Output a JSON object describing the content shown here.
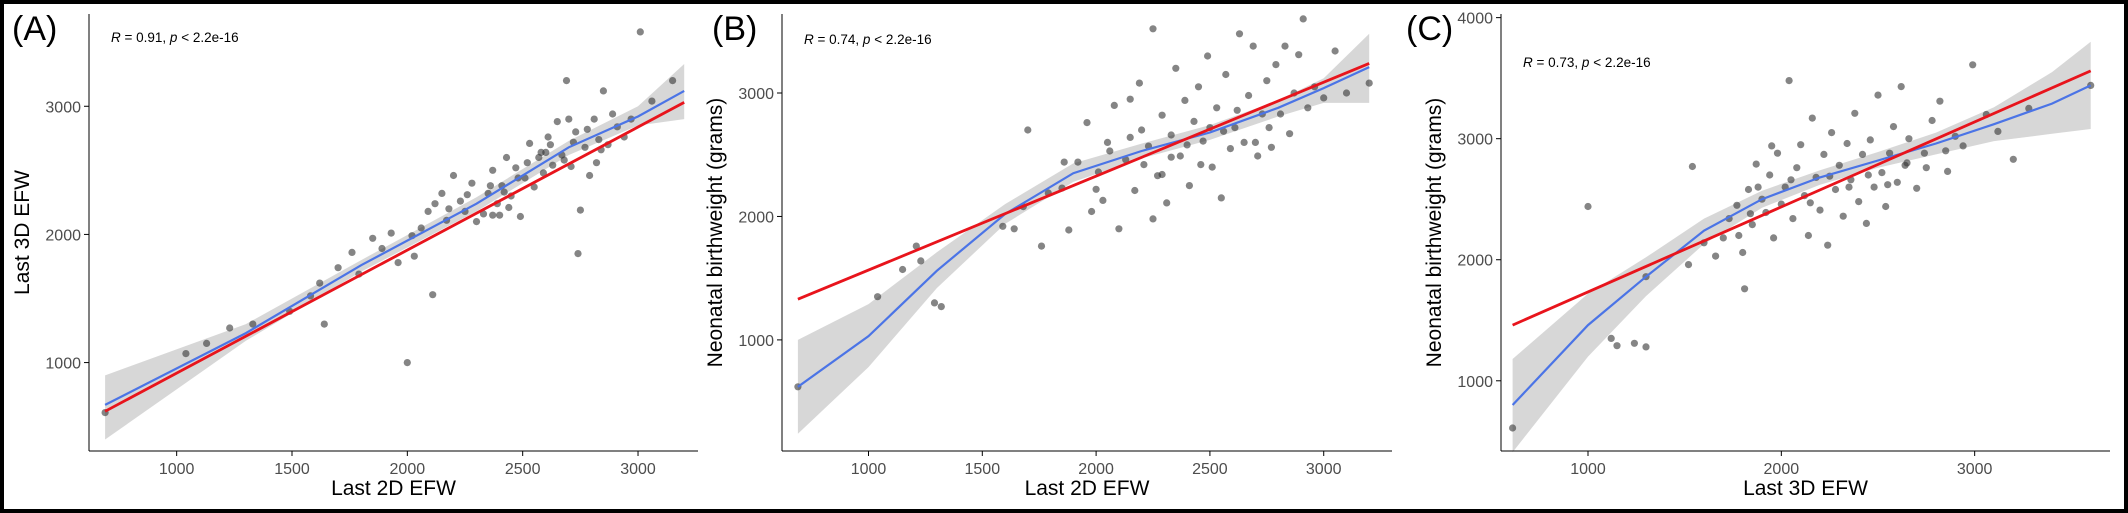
{
  "colors": {
    "linear": "#e8141c",
    "loess": "#4b74e6",
    "band": "#c9c9c9",
    "point": "#333333"
  },
  "chart_data": [
    {
      "type": "scatter",
      "panel_label": "(A)",
      "annotation": {
        "r": "R",
        "r_text": " = 0.91, ",
        "p": "p",
        "p_text": " < 2.2e-16"
      },
      "xlabel": "Last 2D EFW",
      "ylabel": "Last 3D EFW",
      "xlim": [
        620,
        3260
      ],
      "ylim": [
        310,
        3720
      ],
      "xticks": [
        1000,
        1500,
        2000,
        2500,
        3000
      ],
      "yticks": [
        1000,
        2000,
        3000
      ],
      "grid": false,
      "points": [
        [
          690,
          610
        ],
        [
          1040,
          1070
        ],
        [
          1130,
          1150
        ],
        [
          1230,
          1270
        ],
        [
          1330,
          1300
        ],
        [
          1490,
          1400
        ],
        [
          1580,
          1520
        ],
        [
          1640,
          1300
        ],
        [
          1620,
          1620
        ],
        [
          1700,
          1740
        ],
        [
          1760,
          1860
        ],
        [
          1790,
          1690
        ],
        [
          1850,
          1970
        ],
        [
          1890,
          1890
        ],
        [
          1930,
          2010
        ],
        [
          1960,
          1780
        ],
        [
          2020,
          1990
        ],
        [
          2030,
          1830
        ],
        [
          2060,
          2050
        ],
        [
          2090,
          2180
        ],
        [
          2110,
          1530
        ],
        [
          2120,
          2240
        ],
        [
          2150,
          2320
        ],
        [
          2170,
          2110
        ],
        [
          2200,
          2460
        ],
        [
          2230,
          2260
        ],
        [
          2250,
          2180
        ],
        [
          2280,
          2400
        ],
        [
          2300,
          2100
        ],
        [
          2330,
          2160
        ],
        [
          2350,
          2320
        ],
        [
          2370,
          2500
        ],
        [
          2390,
          2240
        ],
        [
          2410,
          2380
        ],
        [
          2430,
          2600
        ],
        [
          2450,
          2300
        ],
        [
          2470,
          2520
        ],
        [
          2490,
          2140
        ],
        [
          2510,
          2440
        ],
        [
          2530,
          2710
        ],
        [
          2550,
          2370
        ],
        [
          2570,
          2600
        ],
        [
          2590,
          2480
        ],
        [
          2610,
          2760
        ],
        [
          2630,
          2540
        ],
        [
          2650,
          2880
        ],
        [
          2670,
          2620
        ],
        [
          2690,
          3200
        ],
        [
          2710,
          2530
        ],
        [
          2730,
          2800
        ],
        [
          2750,
          2190
        ],
        [
          2770,
          2680
        ],
        [
          2790,
          2460
        ],
        [
          2810,
          2900
        ],
        [
          2830,
          2740
        ],
        [
          2850,
          3120
        ],
        [
          2870,
          2700
        ],
        [
          2890,
          2940
        ],
        [
          2910,
          2840
        ],
        [
          2940,
          2760
        ],
        [
          2970,
          2900
        ],
        [
          3010,
          3580
        ],
        [
          3060,
          3040
        ],
        [
          3150,
          3200
        ],
        [
          2000,
          1000
        ],
        [
          2370,
          2150
        ],
        [
          2420,
          2330
        ],
        [
          2480,
          2440
        ],
        [
          2520,
          2560
        ],
        [
          2580,
          2640
        ],
        [
          2620,
          2700
        ],
        [
          2680,
          2580
        ],
        [
          2720,
          2720
        ],
        [
          2780,
          2820
        ],
        [
          2820,
          2560
        ],
        [
          2440,
          2210
        ],
        [
          2360,
          2380
        ],
        [
          2260,
          2310
        ],
        [
          2180,
          2200
        ],
        [
          2600,
          2640
        ],
        [
          2700,
          2900
        ],
        [
          2740,
          1850
        ],
        [
          2840,
          2660
        ],
        [
          2400,
          2150
        ]
      ],
      "linear": [
        [
          690,
          620
        ],
        [
          3200,
          3030
        ]
      ],
      "loess": [
        [
          690,
          670
        ],
        [
          1300,
          1230
        ],
        [
          1800,
          1760
        ],
        [
          2300,
          2240
        ],
        [
          2700,
          2680
        ],
        [
          3000,
          2920
        ],
        [
          3200,
          3120
        ]
      ],
      "band_upper": [
        [
          690,
          900
        ],
        [
          1300,
          1300
        ],
        [
          1800,
          1800
        ],
        [
          2300,
          2290
        ],
        [
          2700,
          2730
        ],
        [
          3000,
          3000
        ],
        [
          3200,
          3330
        ]
      ],
      "band_lower": [
        [
          690,
          400
        ],
        [
          1300,
          1170
        ],
        [
          1800,
          1710
        ],
        [
          2300,
          2180
        ],
        [
          2700,
          2620
        ],
        [
          3000,
          2850
        ],
        [
          3200,
          2900
        ]
      ]
    },
    {
      "type": "scatter",
      "panel_label": "(B)",
      "annotation": {
        "r": "R",
        "r_text": " = 0.74, ",
        "p": "p",
        "p_text": " < 2.2e-16"
      },
      "xlabel": "Last 2D EFW",
      "ylabel": "Neonatal birthweight (grams)",
      "xlim": [
        620,
        3300
      ],
      "ylim": [
        100,
        3640
      ],
      "xticks": [
        1000,
        1500,
        2000,
        2500,
        3000
      ],
      "yticks": [
        1000,
        2000,
        3000
      ],
      "grid": false,
      "points": [
        [
          690,
          620
        ],
        [
          1040,
          1350
        ],
        [
          1150,
          1570
        ],
        [
          1210,
          1760
        ],
        [
          1230,
          1640
        ],
        [
          1290,
          1300
        ],
        [
          1320,
          1270
        ],
        [
          1590,
          1920
        ],
        [
          1640,
          1900
        ],
        [
          1680,
          2080
        ],
        [
          1700,
          2700
        ],
        [
          1760,
          1760
        ],
        [
          1790,
          2190
        ],
        [
          1850,
          2230
        ],
        [
          1880,
          1890
        ],
        [
          1920,
          2440
        ],
        [
          1960,
          2760
        ],
        [
          1980,
          2040
        ],
        [
          2010,
          2360
        ],
        [
          2030,
          2130
        ],
        [
          2060,
          2530
        ],
        [
          2080,
          2900
        ],
        [
          2100,
          1900
        ],
        [
          2130,
          2460
        ],
        [
          2150,
          2640
        ],
        [
          2170,
          2210
        ],
        [
          2190,
          3080
        ],
        [
          2210,
          2420
        ],
        [
          2230,
          2570
        ],
        [
          2250,
          3520
        ],
        [
          2270,
          2330
        ],
        [
          2290,
          2820
        ],
        [
          2310,
          2110
        ],
        [
          2330,
          2660
        ],
        [
          2350,
          3200
        ],
        [
          2370,
          2490
        ],
        [
          2390,
          2940
        ],
        [
          2410,
          2250
        ],
        [
          2430,
          2770
        ],
        [
          2450,
          3050
        ],
        [
          2470,
          2610
        ],
        [
          2490,
          3300
        ],
        [
          2510,
          2400
        ],
        [
          2530,
          2880
        ],
        [
          2550,
          2150
        ],
        [
          2570,
          3150
        ],
        [
          2590,
          2550
        ],
        [
          2610,
          2720
        ],
        [
          2630,
          3480
        ],
        [
          2650,
          2600
        ],
        [
          2670,
          2980
        ],
        [
          2690,
          3380
        ],
        [
          2710,
          2490
        ],
        [
          2730,
          2830
        ],
        [
          2750,
          3100
        ],
        [
          2770,
          2560
        ],
        [
          2790,
          3230
        ],
        [
          2810,
          2830
        ],
        [
          2830,
          3380
        ],
        [
          2850,
          2670
        ],
        [
          2870,
          3000
        ],
        [
          2890,
          3310
        ],
        [
          2910,
          3600
        ],
        [
          2930,
          2880
        ],
        [
          2960,
          3050
        ],
        [
          3000,
          2960
        ],
        [
          3050,
          3340
        ],
        [
          3100,
          3000
        ],
        [
          3200,
          3080
        ],
        [
          2290,
          2340
        ],
        [
          2460,
          2420
        ],
        [
          2560,
          2690
        ],
        [
          2620,
          2860
        ],
        [
          2700,
          2600
        ],
        [
          2760,
          2720
        ],
        [
          2400,
          2580
        ],
        [
          2500,
          2720
        ],
        [
          2330,
          2480
        ],
        [
          2200,
          2700
        ],
        [
          2150,
          2950
        ],
        [
          2050,
          2600
        ],
        [
          2000,
          2220
        ],
        [
          1860,
          2440
        ],
        [
          2250,
          1980
        ]
      ],
      "linear": [
        [
          690,
          1330
        ],
        [
          3200,
          3240
        ]
      ],
      "loess": [
        [
          690,
          620
        ],
        [
          1000,
          1030
        ],
        [
          1300,
          1560
        ],
        [
          1600,
          2020
        ],
        [
          1900,
          2350
        ],
        [
          2200,
          2530
        ],
        [
          2500,
          2680
        ],
        [
          2800,
          2880
        ],
        [
          3000,
          3040
        ],
        [
          3200,
          3210
        ]
      ],
      "band_upper": [
        [
          690,
          1000
        ],
        [
          1000,
          1290
        ],
        [
          1300,
          1710
        ],
        [
          1600,
          2100
        ],
        [
          1900,
          2430
        ],
        [
          2200,
          2590
        ],
        [
          2500,
          2740
        ],
        [
          2800,
          2940
        ],
        [
          3000,
          3120
        ],
        [
          3200,
          3480
        ]
      ],
      "band_lower": [
        [
          690,
          240
        ],
        [
          1000,
          780
        ],
        [
          1300,
          1420
        ],
        [
          1600,
          1940
        ],
        [
          1900,
          2280
        ],
        [
          2200,
          2470
        ],
        [
          2500,
          2620
        ],
        [
          2800,
          2810
        ],
        [
          3000,
          2920
        ],
        [
          3200,
          2920
        ]
      ]
    },
    {
      "type": "scatter",
      "panel_label": "(C)",
      "annotation": {
        "r": "R",
        "r_text": " = 0.73, ",
        "p": "p",
        "p_text": " < 2.2e-16"
      },
      "xlabel": "Last 3D EFW",
      "ylabel": "Neonatal birthweight (grams)",
      "xlim": [
        550,
        3700
      ],
      "ylim": [
        420,
        4030
      ],
      "xticks": [
        1000,
        2000,
        3000
      ],
      "yticks": [
        1000,
        2000,
        3000,
        4000
      ],
      "grid": false,
      "points": [
        [
          610,
          610
        ],
        [
          1000,
          2440
        ],
        [
          1120,
          1350
        ],
        [
          1150,
          1290
        ],
        [
          1240,
          1310
        ],
        [
          1300,
          1280
        ],
        [
          1300,
          1860
        ],
        [
          1520,
          1960
        ],
        [
          1540,
          2770
        ],
        [
          1600,
          2140
        ],
        [
          1660,
          2030
        ],
        [
          1700,
          2180
        ],
        [
          1730,
          2340
        ],
        [
          1770,
          2450
        ],
        [
          1800,
          2060
        ],
        [
          1810,
          1760
        ],
        [
          1830,
          2580
        ],
        [
          1850,
          2290
        ],
        [
          1870,
          2790
        ],
        [
          1900,
          2500
        ],
        [
          1920,
          2390
        ],
        [
          1940,
          2700
        ],
        [
          1960,
          2180
        ],
        [
          1980,
          2880
        ],
        [
          2000,
          2460
        ],
        [
          2020,
          2600
        ],
        [
          2040,
          3480
        ],
        [
          2060,
          2340
        ],
        [
          2080,
          2760
        ],
        [
          2100,
          2950
        ],
        [
          2120,
          2530
        ],
        [
          2140,
          2200
        ],
        [
          2160,
          3170
        ],
        [
          2180,
          2680
        ],
        [
          2200,
          2410
        ],
        [
          2220,
          2870
        ],
        [
          2240,
          2120
        ],
        [
          2260,
          3050
        ],
        [
          2280,
          2580
        ],
        [
          2300,
          2780
        ],
        [
          2320,
          2360
        ],
        [
          2340,
          2960
        ],
        [
          2360,
          2660
        ],
        [
          2380,
          3210
        ],
        [
          2400,
          2480
        ],
        [
          2420,
          2870
        ],
        [
          2440,
          2300
        ],
        [
          2460,
          2990
        ],
        [
          2480,
          2600
        ],
        [
          2500,
          3360
        ],
        [
          2520,
          2720
        ],
        [
          2540,
          2440
        ],
        [
          2560,
          2880
        ],
        [
          2580,
          3100
        ],
        [
          2600,
          2640
        ],
        [
          2620,
          3430
        ],
        [
          2640,
          2780
        ],
        [
          2660,
          3000
        ],
        [
          2700,
          2590
        ],
        [
          2740,
          2880
        ],
        [
          2780,
          3150
        ],
        [
          2820,
          3310
        ],
        [
          2860,
          2730
        ],
        [
          2900,
          3020
        ],
        [
          2940,
          2940
        ],
        [
          2990,
          3610
        ],
        [
          3060,
          3200
        ],
        [
          3120,
          3060
        ],
        [
          3200,
          2830
        ],
        [
          3280,
          3250
        ],
        [
          3600,
          3440
        ],
        [
          1780,
          2200
        ],
        [
          1880,
          2600
        ],
        [
          2050,
          2660
        ],
        [
          2150,
          2470
        ],
        [
          2250,
          2690
        ],
        [
          2350,
          2600
        ],
        [
          2450,
          2700
        ],
        [
          2550,
          2620
        ],
        [
          2650,
          2800
        ],
        [
          2750,
          2760
        ],
        [
          2850,
          2900
        ],
        [
          1950,
          2940
        ],
        [
          1840,
          2380
        ]
      ],
      "linear": [
        [
          610,
          1460
        ],
        [
          3600,
          3560
        ]
      ],
      "loess": [
        [
          610,
          800
        ],
        [
          1000,
          1460
        ],
        [
          1300,
          1860
        ],
        [
          1600,
          2240
        ],
        [
          1900,
          2500
        ],
        [
          2200,
          2680
        ],
        [
          2500,
          2820
        ],
        [
          2800,
          2960
        ],
        [
          3100,
          3120
        ],
        [
          3400,
          3290
        ],
        [
          3600,
          3440
        ]
      ],
      "band_upper": [
        [
          610,
          1180
        ],
        [
          1000,
          1720
        ],
        [
          1300,
          2020
        ],
        [
          1600,
          2340
        ],
        [
          1900,
          2570
        ],
        [
          2200,
          2740
        ],
        [
          2500,
          2890
        ],
        [
          2800,
          3050
        ],
        [
          3100,
          3260
        ],
        [
          3400,
          3550
        ],
        [
          3600,
          3800
        ]
      ],
      "band_lower": [
        [
          610,
          410
        ],
        [
          1000,
          1200
        ],
        [
          1300,
          1700
        ],
        [
          1600,
          2130
        ],
        [
          1900,
          2430
        ],
        [
          2200,
          2620
        ],
        [
          2500,
          2760
        ],
        [
          2800,
          2870
        ],
        [
          3100,
          2980
        ],
        [
          3400,
          3040
        ],
        [
          3600,
          3080
        ]
      ]
    }
  ]
}
